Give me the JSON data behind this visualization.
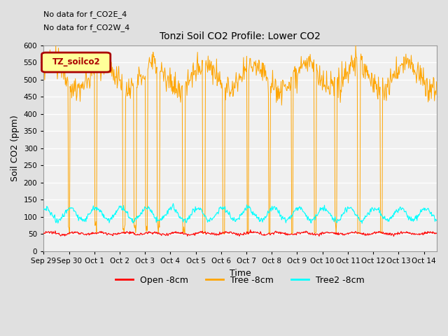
{
  "title": "Tonzi Soil CO2 Profile: Lower CO2",
  "xlabel": "Time",
  "ylabel": "Soil CO2 (ppm)",
  "ylim": [
    0,
    600
  ],
  "yticks": [
    0,
    50,
    100,
    150,
    200,
    250,
    300,
    350,
    400,
    450,
    500,
    550,
    600
  ],
  "annotations": [
    "No data for f_CO2E_4",
    "No data for f_CO2W_4"
  ],
  "legend_label": "TZ_soilco2",
  "legend_box_edgecolor": "#AA0000",
  "legend_box_fill": "#FFFF99",
  "series": {
    "open": {
      "label": "Open -8cm",
      "color": "#FF0000"
    },
    "tree": {
      "label": "Tree -8cm",
      "color": "#FFA500"
    },
    "tree2": {
      "label": "Tree2 -8cm",
      "color": "#00FFFF"
    }
  },
  "fig_bg_color": "#E0E0E0",
  "plot_bg_color": "#F0F0F0",
  "xtick_labels": [
    "Sep 29",
    "Sep 30",
    "Oct 1",
    "Oct 2",
    "Oct 3",
    "Oct 4",
    "Oct 5",
    "Oct 6",
    "Oct 7",
    "Oct 8",
    "Oct 9",
    "Oct 10",
    "Oct 11",
    "Oct 12",
    "Oct 13",
    "Oct 14"
  ],
  "xtick_positions": [
    0,
    1,
    2,
    3,
    4,
    5,
    6,
    7,
    8,
    9,
    10,
    11,
    12,
    13,
    14,
    15
  ]
}
